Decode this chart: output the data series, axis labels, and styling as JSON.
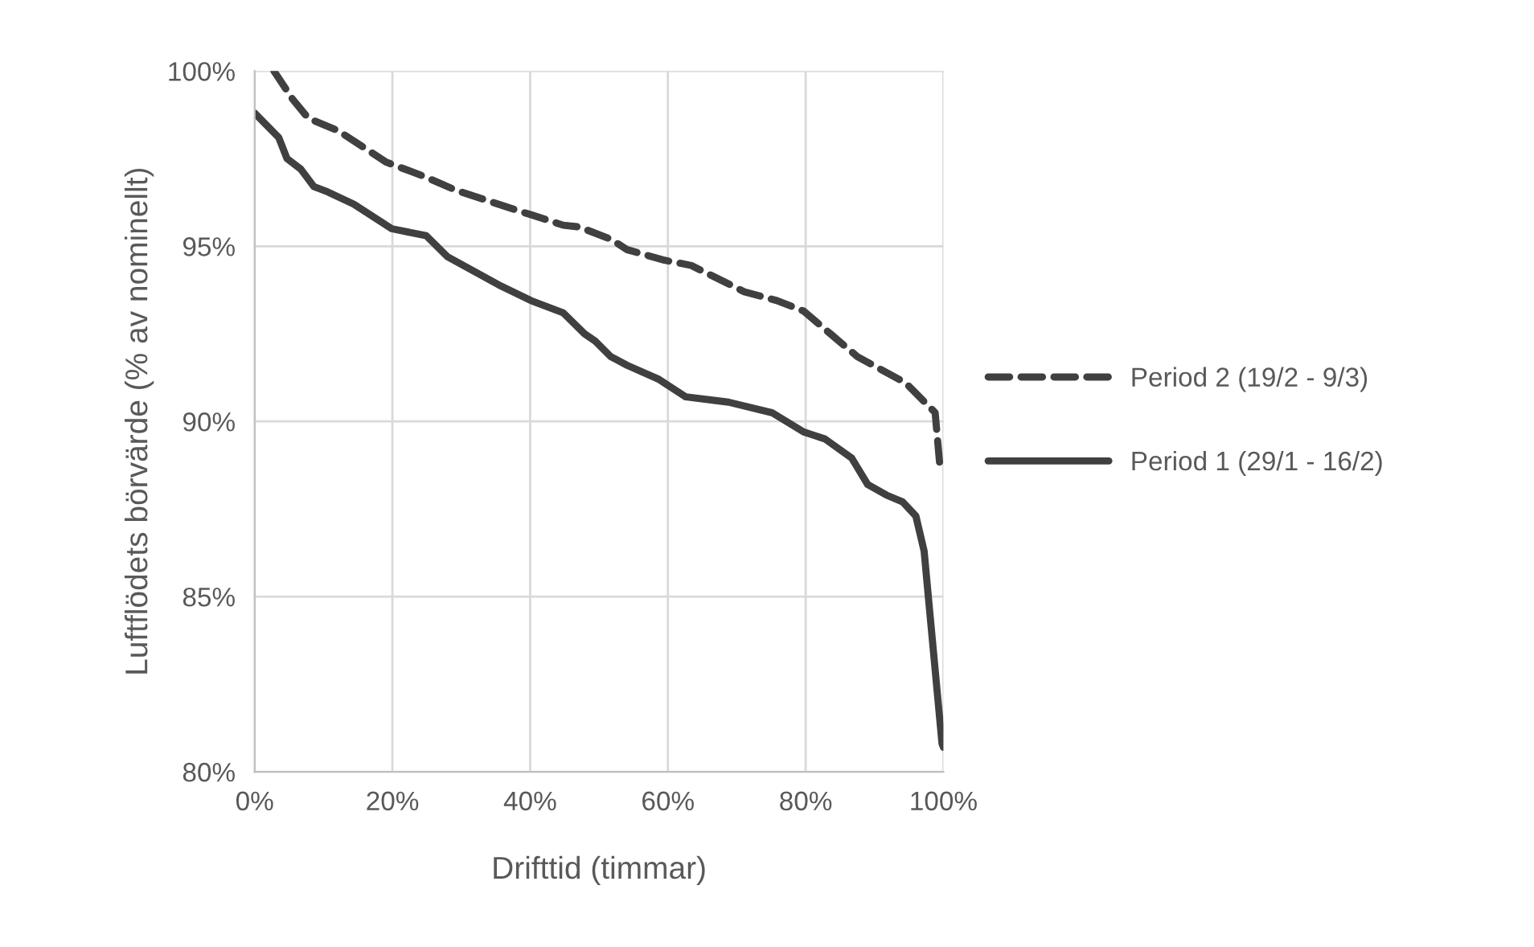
{
  "chart_data": {
    "type": "line",
    "xlabel": "Drifttid (timmar)",
    "ylabel": "Luftflödets börvärde (% av nominellt)",
    "xlim": [
      0,
      100
    ],
    "ylim": [
      80,
      100
    ],
    "xticks": [
      {
        "value": 0,
        "label": "0%"
      },
      {
        "value": 20,
        "label": "20%"
      },
      {
        "value": 40,
        "label": "40%"
      },
      {
        "value": 60,
        "label": "60%"
      },
      {
        "value": 80,
        "label": "80%"
      },
      {
        "value": 100,
        "label": "100%"
      }
    ],
    "yticks": [
      {
        "value": 80,
        "label": "80%"
      },
      {
        "value": 85,
        "label": "85%"
      },
      {
        "value": 90,
        "label": "90%"
      },
      {
        "value": 95,
        "label": "95%"
      },
      {
        "value": 100,
        "label": "100%"
      }
    ],
    "grid": true,
    "legend": "right",
    "series": [
      {
        "name": "Period 2 (19/2 - 9/3)",
        "color": "#404040",
        "line_style": "dashed",
        "x": [
          2.8,
          5.5,
          7.8,
          12.1,
          19.1,
          24.5,
          29.2,
          36.9,
          40.1,
          44.8,
          47.1,
          51.7,
          54.1,
          59.5,
          63.4,
          71.1,
          75.8,
          79.7,
          83.6,
          87.5,
          94.5,
          98.8,
          99.5,
          100
        ],
        "values": [
          100.0,
          99.2,
          98.65,
          98.3,
          97.4,
          97.0,
          96.6,
          96.1,
          95.9,
          95.6,
          95.55,
          95.2,
          94.9,
          94.6,
          94.45,
          93.7,
          93.45,
          93.15,
          92.5,
          91.85,
          91.1,
          90.25,
          88.7,
          88.6
        ]
      },
      {
        "name": "Period 1 (29/1 - 16/2)",
        "color": "#404040",
        "line_style": "solid",
        "x": [
          0,
          3.5,
          4.7,
          6.7,
          8.6,
          10.6,
          14.4,
          19.9,
          24.9,
          28.0,
          35.4,
          40.1,
          44.8,
          47.9,
          49.4,
          51.7,
          54.1,
          58.7,
          62.6,
          68.8,
          75.1,
          79.7,
          82.8,
          86.7,
          89.0,
          91.7,
          94.1,
          96.0,
          97.2,
          98.0,
          99.8,
          100
        ],
        "values": [
          98.8,
          98.1,
          97.5,
          97.2,
          96.7,
          96.55,
          96.2,
          95.5,
          95.3,
          94.7,
          93.9,
          93.45,
          93.1,
          92.5,
          92.3,
          91.85,
          91.6,
          91.2,
          90.7,
          90.55,
          90.25,
          89.7,
          89.5,
          88.95,
          88.2,
          87.9,
          87.7,
          87.3,
          86.3,
          84.6,
          80.8,
          80.7
        ]
      }
    ]
  }
}
